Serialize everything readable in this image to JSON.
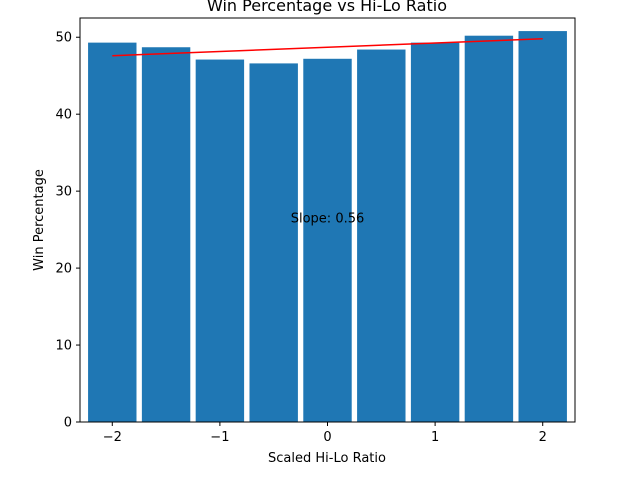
{
  "chart_data": {
    "type": "bar",
    "title": "Win Percentage vs Hi-Lo Ratio",
    "xlabel": "Scaled Hi-Lo Ratio",
    "ylabel": "Win Percentage",
    "x": [
      -2.0,
      -1.5,
      -1.0,
      -0.5,
      0.0,
      0.5,
      1.0,
      1.5,
      2.0
    ],
    "values": [
      49.3,
      48.7,
      47.1,
      46.6,
      47.2,
      48.4,
      49.3,
      50.2,
      50.8
    ],
    "bar_color": "#1f77b4",
    "trendline": {
      "color": "#ff0000",
      "x": [
        -2.0,
        2.0
      ],
      "y": [
        47.6,
        49.8
      ]
    },
    "annotation": "Slope: 0.56",
    "annotation_pos": {
      "x": 0.0,
      "y": 26.5
    },
    "xticks": [
      -2,
      -1,
      0,
      1,
      2
    ],
    "xtick_labels": [
      "−2",
      "−1",
      "0",
      "1",
      "2"
    ],
    "yticks": [
      0,
      10,
      20,
      30,
      40,
      50
    ],
    "yticks_labels": [
      "0",
      "10",
      "20",
      "30",
      "40",
      "50"
    ],
    "xlim": [
      -2.3,
      2.3
    ],
    "ylim": [
      0,
      52.5
    ],
    "grid": false
  }
}
